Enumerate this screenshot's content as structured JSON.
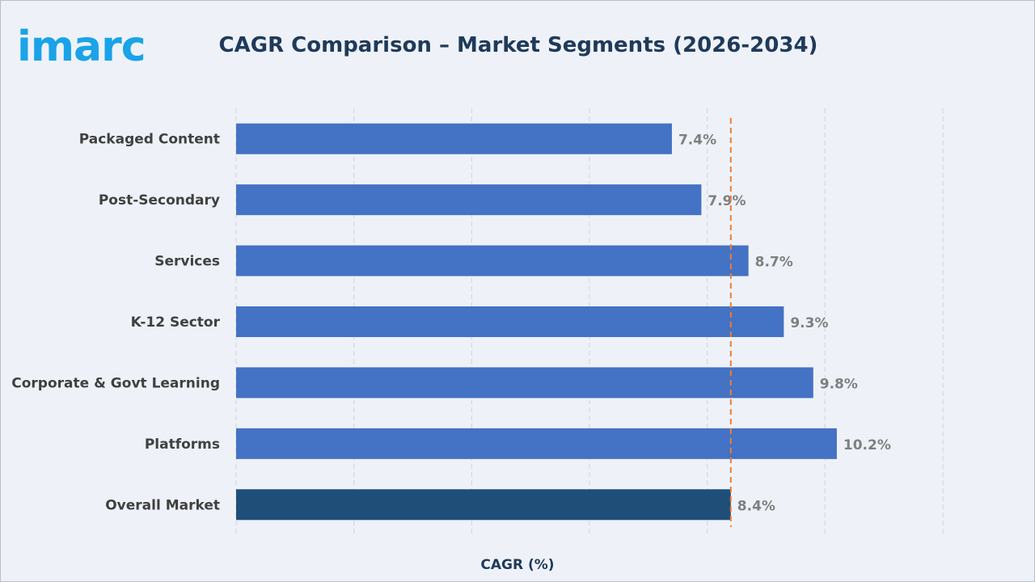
{
  "brand": {
    "logo_text": "imarc",
    "logo_color": "#1aa3e8"
  },
  "chart_data": {
    "type": "bar",
    "orientation": "horizontal",
    "title": "CAGR Comparison – Market Segments (2026-2034)",
    "xlabel": "CAGR (%)",
    "ylabel": "",
    "categories": [
      "Packaged Content",
      "Post-Secondary",
      "Services",
      "K-12 Sector",
      "Corporate & Govt Learning",
      "Platforms",
      "Overall Market"
    ],
    "values": [
      7.4,
      7.9,
      8.7,
      9.3,
      9.8,
      10.2,
      8.4
    ],
    "value_labels": [
      "7.4%",
      "7.9%",
      "8.7%",
      "9.3%",
      "9.8%",
      "10.2%",
      "8.4%"
    ],
    "xlim": [
      0,
      12
    ],
    "gridlines_at": [
      0,
      2,
      4,
      6,
      8,
      10,
      12
    ],
    "x_tick_labels_shown": false,
    "grid": true,
    "reference_line": {
      "value": 8.4,
      "style": "dashed",
      "color": "#ed7d31"
    },
    "colors": {
      "segment": "#4472c4",
      "overall": "#1f4e79",
      "value_label": "#7f7f7f",
      "category_label": "#404040"
    }
  }
}
